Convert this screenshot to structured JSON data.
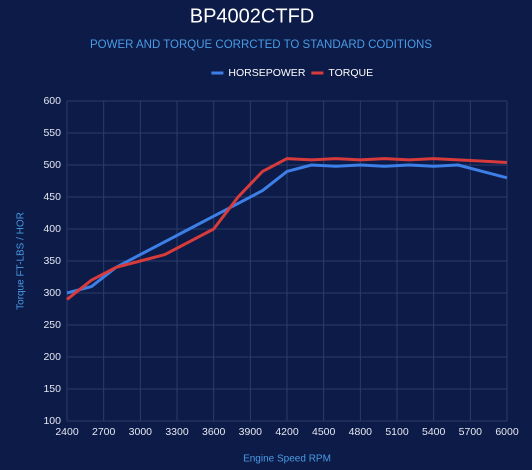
{
  "chart_data": {
    "type": "line",
    "title": "BP4002CTFD",
    "subtitle": "POWER AND TORQUE CORRCTED TO STANDARD CODITIONS",
    "x_label": "Engine Speed RPM",
    "y_label": "Torque FT-LBS / HOR",
    "x": [
      2400,
      2600,
      2800,
      3000,
      3200,
      3400,
      3600,
      3800,
      4000,
      4200,
      4400,
      4600,
      4800,
      5000,
      5200,
      5400,
      5600,
      5800,
      6000
    ],
    "series": [
      {
        "name": "HORSEPOWER",
        "color": "#3d7fe6",
        "values": [
          300,
          310,
          340,
          360,
          380,
          400,
          420,
          440,
          460,
          490,
          500,
          498,
          500,
          498,
          500,
          498,
          500,
          490,
          480
        ]
      },
      {
        "name": "TORQUE",
        "color": "#d83b3b",
        "values": [
          290,
          320,
          340,
          350,
          360,
          380,
          400,
          450,
          490,
          510,
          508,
          510,
          508,
          510,
          508,
          510,
          508,
          506,
          504
        ]
      }
    ],
    "xlim": [
      2400,
      6000
    ],
    "xticks": [
      2400,
      2700,
      3000,
      3300,
      3600,
      3900,
      4200,
      4500,
      4800,
      5100,
      5400,
      5700,
      6000
    ],
    "ylim": [
      100,
      600
    ],
    "yticks": [
      100,
      150,
      200,
      250,
      300,
      350,
      400,
      450,
      500,
      550,
      600
    ],
    "grid": true,
    "legend": "top"
  }
}
